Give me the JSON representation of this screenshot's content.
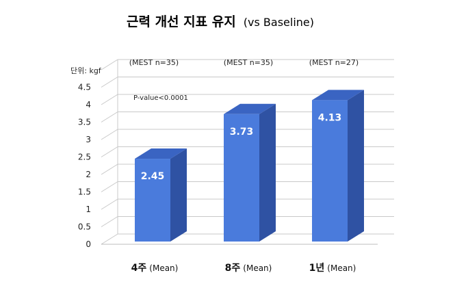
{
  "chart_data": {
    "type": "bar",
    "title": "근력 개선 지표 유지",
    "subtitle": "(vs Baseline)",
    "unit_label": "단위: kgf",
    "annotation": "P-value<0.0001",
    "categories": [
      "4주",
      "8주",
      "1년"
    ],
    "category_suffix": "(Mean)",
    "values": [
      2.45,
      3.73,
      4.13
    ],
    "value_labels": [
      "2.45",
      "3.73",
      "4.13"
    ],
    "sample_notes": [
      "(MEST n=35)",
      "(MEST n=35)",
      "(MEST n=27)"
    ],
    "ylim": [
      0,
      5
    ],
    "y_ticks": [
      0,
      0.5,
      1,
      1.5,
      2,
      2.5,
      3,
      3.5,
      4,
      4.5
    ],
    "y_tick_labels": [
      "0",
      "0.5",
      "1",
      "1.5",
      "2",
      "2.5",
      "3",
      "3.5",
      "4",
      "4.5"
    ],
    "grid": true,
    "three_d": true,
    "colors": {
      "bar_front": "#4a7bdc",
      "bar_side": "#2f52a3",
      "bar_top": "#3a64c2",
      "grid": "#c8c8c8",
      "wall": "#bdbdbd"
    }
  }
}
